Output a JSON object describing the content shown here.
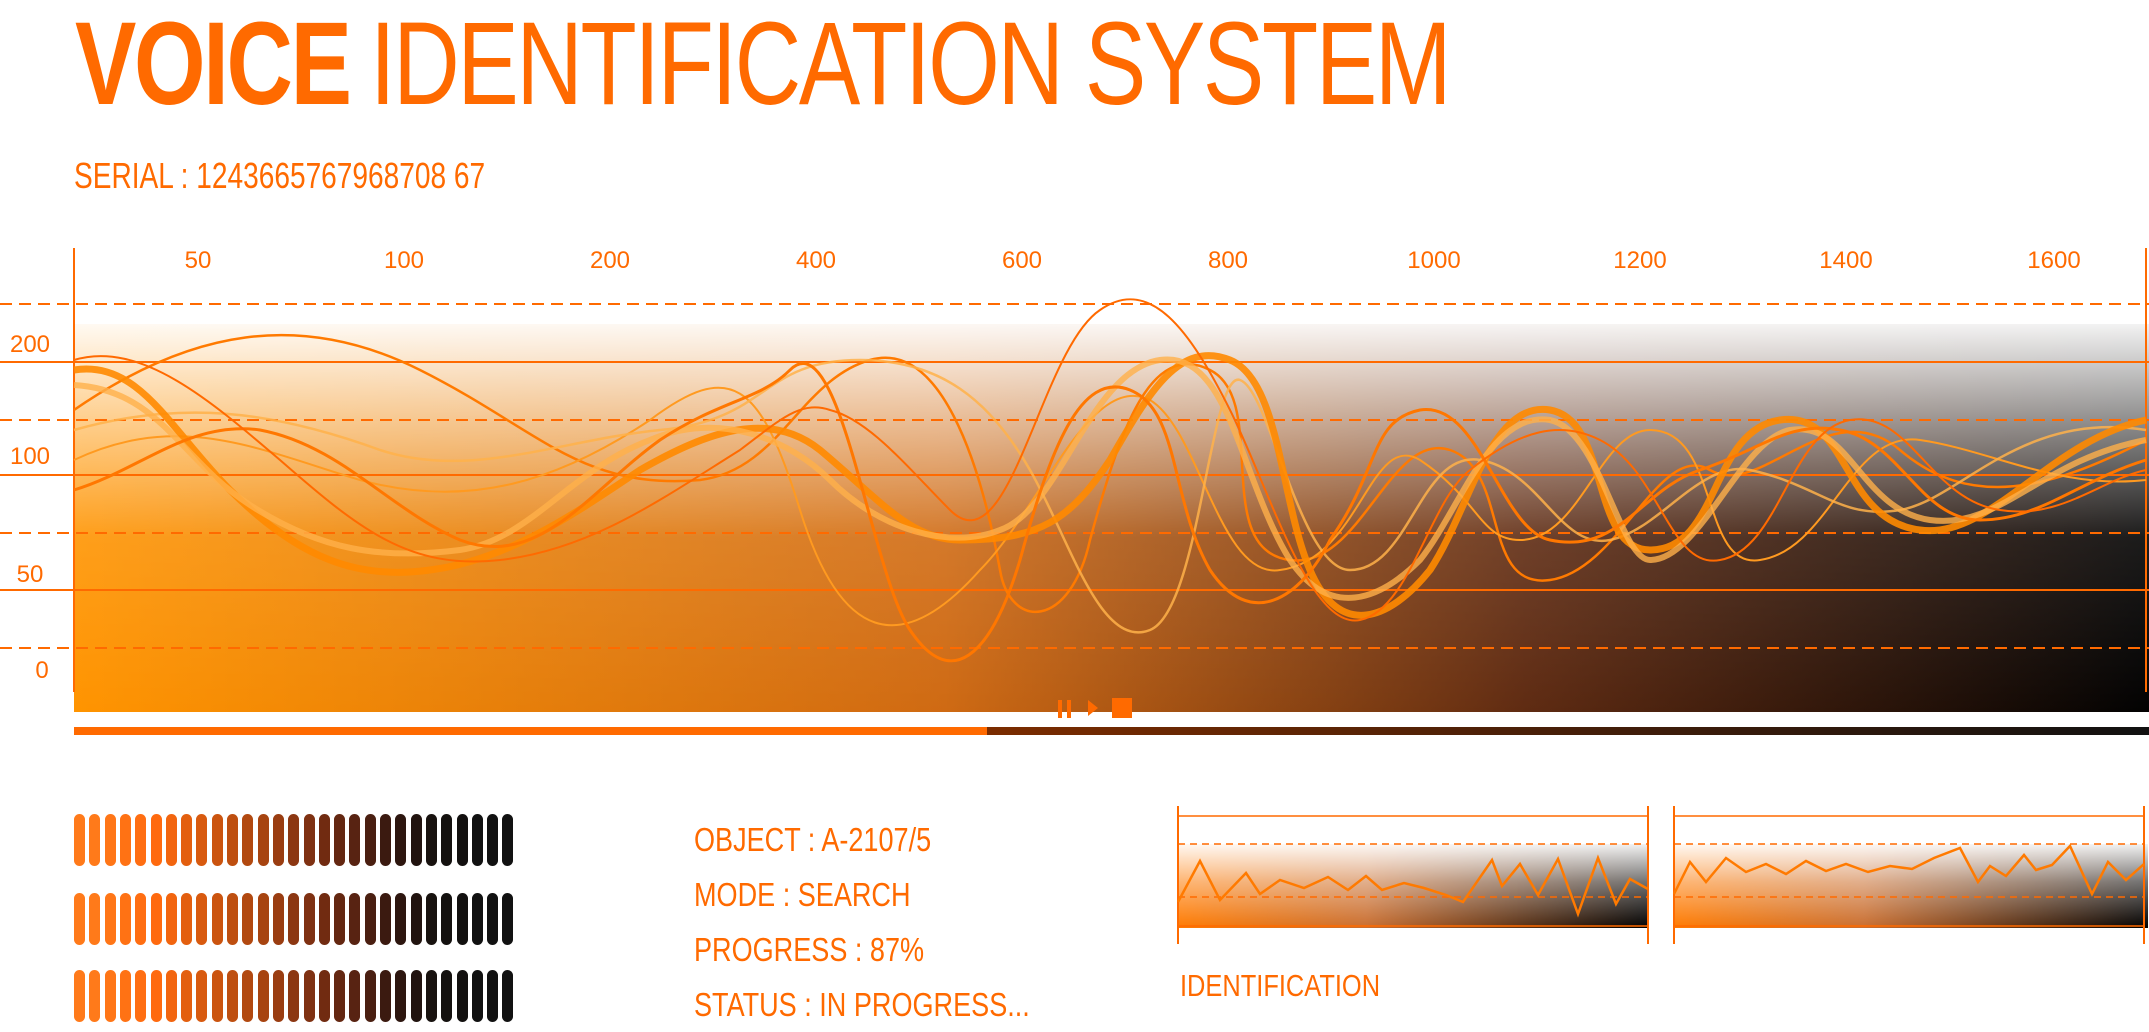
{
  "header": {
    "title_strong": "VOICE",
    "title_light": "IDENTIFICATION SYSTEM",
    "serial": "SERIAL : 1243665767968708 67"
  },
  "chart": {
    "x_ticks": [
      "50",
      "100",
      "200",
      "400",
      "600",
      "800",
      "1000",
      "1200",
      "1400",
      "1600"
    ],
    "y_ticks": [
      "200",
      "100",
      "50",
      "0"
    ]
  },
  "controls": {
    "pause_icon": "pause-icon",
    "play_icon": "play-icon",
    "stop_icon": "stop-icon"
  },
  "progress_bar": {
    "value": 0.44
  },
  "info": {
    "object_label": "OBJECT : A-2107/5",
    "mode_label": "MODE : SEARCH",
    "progress_label": "PROGRESS : 87%",
    "status_label": "STATUS : IN PROGRESS..."
  },
  "identification": {
    "label": "IDENTIFICATION"
  },
  "colors": {
    "accent": "#ff6a00",
    "accent_light": "#ffab3d",
    "dark": "#111111"
  }
}
